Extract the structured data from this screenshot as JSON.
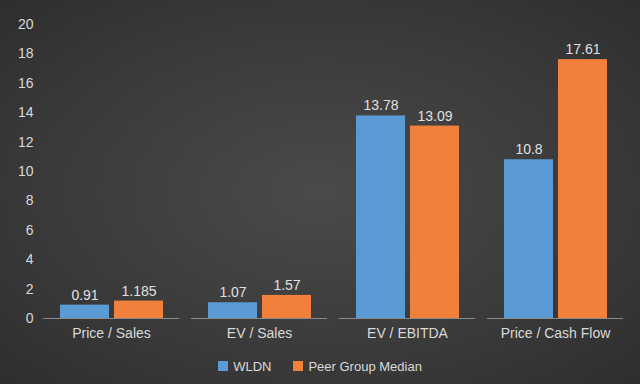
{
  "chart_data": {
    "type": "bar",
    "categories": [
      "Price / Sales",
      "EV / Sales",
      "EV / EBITDA",
      "Price / Cash Flow"
    ],
    "series": [
      {
        "name": "WLDN",
        "color": "#5b9bd5",
        "values": [
          0.91,
          1.07,
          13.78,
          10.8
        ]
      },
      {
        "name": "Peer Group Median",
        "color": "#f0803c",
        "values": [
          1.185,
          1.57,
          13.09,
          17.61
        ]
      }
    ],
    "ylim": [
      0,
      20
    ],
    "yticks": [
      0,
      2,
      4,
      6,
      8,
      10,
      12,
      14,
      16,
      18,
      20
    ],
    "grid": false,
    "data_labels": true,
    "legend": "bottom"
  }
}
